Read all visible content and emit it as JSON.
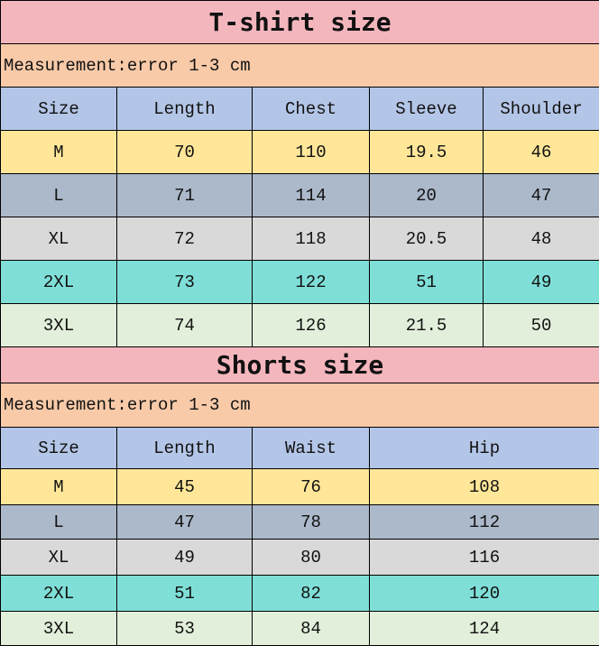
{
  "tshirt": {
    "title": "T-shirt size",
    "note": "Measurement:error 1-3 cm",
    "headers": [
      "Size",
      "Length",
      "Chest",
      "Sleeve",
      "Shoulder"
    ],
    "rows": [
      [
        "M",
        "70",
        "110",
        "19.5",
        "46"
      ],
      [
        "L",
        "71",
        "114",
        "20",
        "47"
      ],
      [
        "XL",
        "72",
        "118",
        "20.5",
        "48"
      ],
      [
        "2XL",
        "73",
        "122",
        "51",
        "49"
      ],
      [
        "3XL",
        "74",
        "126",
        "21.5",
        "50"
      ]
    ]
  },
  "shorts": {
    "title": "Shorts size",
    "note": "Measurement:error 1-3 cm",
    "headers": [
      "Size",
      "Length",
      "Waist",
      "Hip"
    ],
    "rows": [
      [
        "M",
        "45",
        "76",
        "108"
      ],
      [
        "L",
        "47",
        "78",
        "112"
      ],
      [
        "XL",
        "49",
        "80",
        "116"
      ],
      [
        "2XL",
        "51",
        "82",
        "120"
      ],
      [
        "3XL",
        "53",
        "84",
        "124"
      ]
    ]
  },
  "colors": {
    "title_bg": "#f4b6bd",
    "note_bg": "#f8caa8",
    "header_bg": "#b4c6e7",
    "row_bgs": [
      "#ffe699",
      "#acb9ca",
      "#d9d9d9",
      "#7fdfd8",
      "#e2efda"
    ]
  }
}
